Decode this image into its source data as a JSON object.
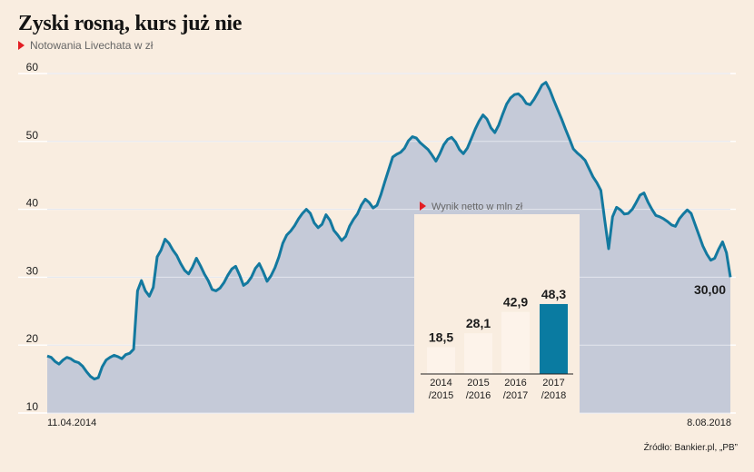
{
  "title": "Zyski rosną, kurs już nie",
  "subtitle": "Notowania Livechata w zł",
  "source": "Źródło: Bankier.pl, „PB”",
  "colors": {
    "background": "#f9ede0",
    "line": "#13799f",
    "area": "#c5cad8",
    "grid": "#ffffff",
    "bar": "#fdf3ea",
    "bar_highlight": "#0a7ba1",
    "accent": "#e31e24"
  },
  "chart_data": [
    {
      "type": "line",
      "title": "Zyski rosną, kurs już nie",
      "subtitle": "Notowania Livechata w zł",
      "ylim": [
        10,
        60
      ],
      "yticks": [
        10,
        20,
        30,
        40,
        50,
        60
      ],
      "x_start_label": "11.04.2014",
      "x_end_label": "8.08.2018",
      "grid": true,
      "area_fill": true,
      "last_value_label": "30,00",
      "series": [
        {
          "values": [
            18.4,
            18.2,
            17.6,
            17.2,
            17.8,
            18.2,
            18.0,
            17.6,
            17.4,
            16.9,
            16.1,
            15.4,
            15.0,
            15.2,
            16.8,
            17.8,
            18.2,
            18.5,
            18.3,
            18.0,
            18.6,
            18.8,
            19.4,
            28.0,
            29.5,
            28.0,
            27.2,
            28.5,
            33.0,
            34.0,
            35.6,
            35.0,
            34.0,
            33.2,
            32.0,
            31.0,
            30.5,
            31.5,
            32.8,
            31.7,
            30.5,
            29.5,
            28.2,
            28.0,
            28.4,
            29.2,
            30.3,
            31.2,
            31.6,
            30.3,
            28.8,
            29.2,
            30.0,
            31.3,
            32.0,
            30.8,
            29.4,
            30.2,
            31.4,
            33.0,
            35.0,
            36.2,
            36.8,
            37.6,
            38.6,
            39.4,
            40.0,
            39.4,
            38.0,
            37.3,
            37.8,
            39.2,
            38.4,
            36.9,
            36.2,
            35.4,
            36.0,
            37.5,
            38.5,
            39.3,
            40.6,
            41.5,
            41.0,
            40.2,
            40.6,
            42.2,
            44.1,
            45.9,
            47.7,
            48.1,
            48.4,
            49.0,
            50.1,
            50.7,
            50.5,
            49.8,
            49.3,
            48.8,
            48.0,
            47.1,
            48.2,
            49.5,
            50.3,
            50.6,
            49.9,
            48.8,
            48.2,
            49.0,
            50.4,
            51.8,
            53.0,
            53.9,
            53.3,
            52.0,
            51.3,
            52.4,
            54.0,
            55.5,
            56.4,
            56.9,
            57.0,
            56.5,
            55.6,
            55.4,
            56.2,
            57.2,
            58.3,
            58.7,
            57.6,
            56.1,
            54.7,
            53.3,
            51.8,
            50.4,
            48.9,
            48.3,
            47.8,
            47.2,
            46.0,
            44.8,
            43.9,
            42.8,
            38.4,
            34.2,
            38.9,
            40.3,
            39.9,
            39.3,
            39.4,
            40.0,
            41.0,
            42.1,
            42.4,
            41.1,
            40.0,
            39.1,
            38.9,
            38.6,
            38.2,
            37.7,
            37.5,
            38.6,
            39.3,
            39.9,
            39.4,
            37.8,
            36.2,
            34.6,
            33.4,
            32.5,
            32.8,
            34.1,
            35.2,
            33.6,
            30.0
          ]
        }
      ]
    },
    {
      "type": "bar",
      "title": "Wynik netto w mln zł",
      "categories": [
        "2014\n/2015",
        "2015\n/2016",
        "2016\n/2017",
        "2017\n/2018"
      ],
      "values": [
        18.5,
        28.1,
        42.9,
        48.3
      ],
      "value_labels": [
        "18,5",
        "28,1",
        "42,9",
        "48,3"
      ],
      "highlight_index": 3
    }
  ]
}
